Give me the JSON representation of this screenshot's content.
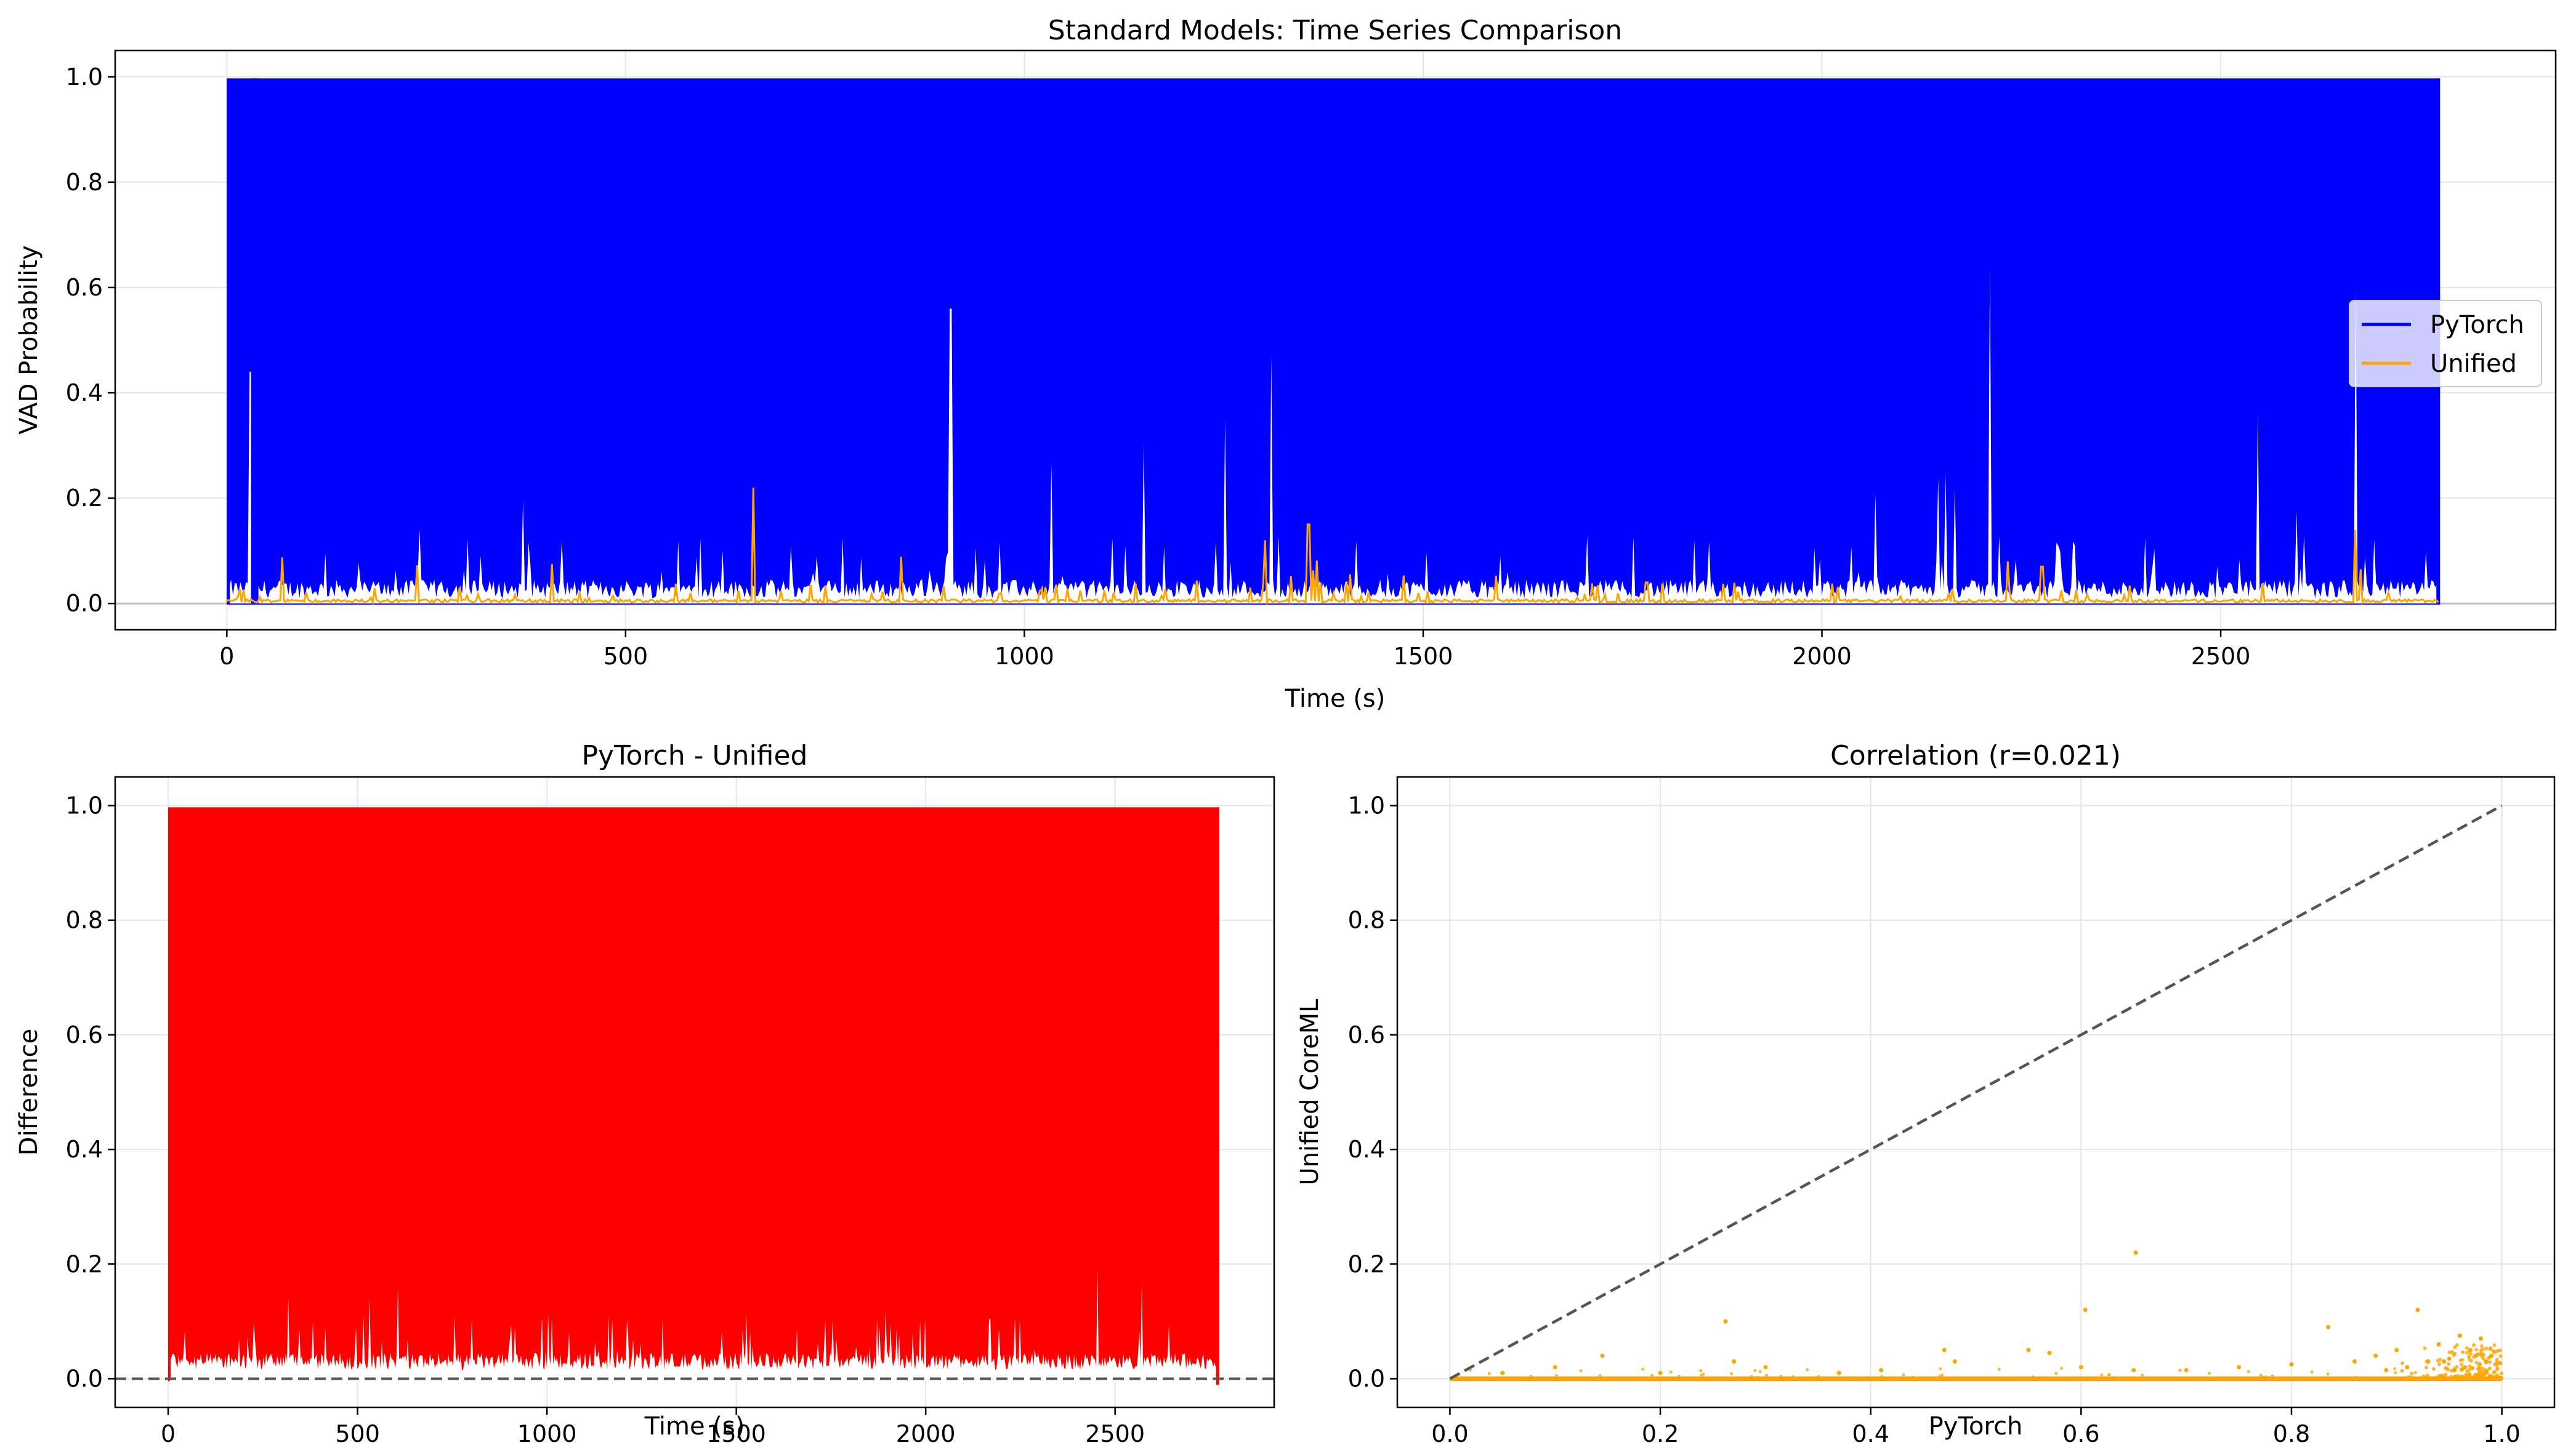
{
  "colors": {
    "pytorch": "#0000ff",
    "unified": "#ffa500",
    "difference": "#ff0000",
    "reference_line": "#555555",
    "grid": "#e6e6e6"
  },
  "chart_data": [
    {
      "type": "line",
      "title": "Standard Models: Time Series Comparison",
      "xlabel": "Time (s)",
      "ylabel": "VAD Probability",
      "xlim": [
        -140,
        2920
      ],
      "ylim": [
        -0.05,
        1.05
      ],
      "x_ticks": [
        0,
        500,
        1000,
        1500,
        2000,
        2500
      ],
      "y_ticks": [
        0.0,
        0.2,
        0.4,
        0.6,
        0.8,
        1.0
      ],
      "x_tick_labels": [
        "0",
        "500",
        "1000",
        "1500",
        "2000",
        "2500"
      ],
      "y_tick_labels": [
        "0.0",
        "0.2",
        "0.4",
        "0.6",
        "0.8",
        "1.0"
      ],
      "grid": true,
      "legend": "center-right",
      "duration_s": 2775,
      "series": [
        {
          "name": "PyTorch",
          "color": "#0000ff",
          "description_values": "dense oscillation between ~0.0 and 0.997 over entire duration",
          "max": 0.997,
          "min": 0.0
        },
        {
          "name": "Unified",
          "color": "#ffa500",
          "max": 0.22,
          "spikes": [
            [
              660,
              0.22
            ],
            [
              1302,
              0.12
            ],
            [
              1356,
              0.15
            ],
            [
              2233,
              0.08
            ],
            [
              2668,
              0.14
            ],
            [
              2276,
              0.07
            ],
            [
              1780,
              0.04
            ]
          ]
        }
      ],
      "pytorch_low_envelope_spikes": [
        [
          30,
          0.44
        ],
        [
          908,
          0.56
        ],
        [
          1310,
          0.47
        ],
        [
          2210,
          0.64
        ],
        [
          1252,
          0.35
        ],
        [
          2546,
          0.36
        ],
        [
          2670,
          0.6
        ]
      ]
    },
    {
      "type": "line",
      "title": "PyTorch - Unified",
      "xlabel": "Time (s)",
      "ylabel": "Difference",
      "xlim": [
        -140,
        2920
      ],
      "ylim": [
        -0.05,
        1.05
      ],
      "x_ticks": [
        0,
        500,
        1000,
        1500,
        2000,
        2500
      ],
      "y_ticks": [
        0.0,
        0.2,
        0.4,
        0.6,
        0.8,
        1.0
      ],
      "x_tick_labels": [
        "0",
        "500",
        "1000",
        "1500",
        "2000",
        "2500"
      ],
      "y_tick_labels": [
        "0.0",
        "0.2",
        "0.4",
        "0.6",
        "0.8",
        "1.0"
      ],
      "grid": true,
      "reference_y": 0.0,
      "series": [
        {
          "color": "#ff0000",
          "max": 0.997,
          "min": -0.02
        }
      ]
    },
    {
      "type": "scatter",
      "title": "Correlation (r=0.021)",
      "xlabel": "PyTorch",
      "ylabel": "Unified CoreML",
      "xlim": [
        -0.05,
        1.05
      ],
      "ylim": [
        -0.05,
        1.05
      ],
      "x_ticks": [
        0.0,
        0.2,
        0.4,
        0.6,
        0.8,
        1.0
      ],
      "y_ticks": [
        0.0,
        0.2,
        0.4,
        0.6,
        0.8,
        1.0
      ],
      "x_tick_labels": [
        "0.0",
        "0.2",
        "0.4",
        "0.6",
        "0.8",
        "1.0"
      ],
      "y_tick_labels": [
        "0.0",
        "0.2",
        "0.4",
        "0.6",
        "0.8",
        "1.0"
      ],
      "grid": true,
      "correlation_r": 0.021,
      "reference_line": [
        [
          0,
          0
        ],
        [
          1,
          1
        ]
      ],
      "points": [
        [
          0.652,
          0.22
        ],
        [
          0.92,
          0.12
        ],
        [
          0.604,
          0.12
        ],
        [
          0.262,
          0.1
        ],
        [
          0.835,
          0.09
        ],
        [
          0.96,
          0.075
        ],
        [
          0.98,
          0.07
        ],
        [
          0.145,
          0.04
        ],
        [
          0.47,
          0.05
        ],
        [
          0.55,
          0.05
        ],
        [
          0.57,
          0.045
        ],
        [
          0.9,
          0.05
        ],
        [
          0.88,
          0.04
        ],
        [
          0.94,
          0.06
        ],
        [
          0.97,
          0.05
        ],
        [
          0.99,
          0.04
        ],
        [
          0.95,
          0.035
        ],
        [
          0.93,
          0.03
        ],
        [
          0.86,
          0.03
        ],
        [
          0.8,
          0.025
        ],
        [
          0.75,
          0.02
        ],
        [
          0.7,
          0.015
        ],
        [
          0.65,
          0.015
        ],
        [
          0.6,
          0.02
        ],
        [
          0.48,
          0.03
        ],
        [
          0.41,
          0.015
        ],
        [
          0.37,
          0.01
        ],
        [
          0.3,
          0.02
        ],
        [
          0.27,
          0.03
        ],
        [
          0.2,
          0.01
        ],
        [
          0.1,
          0.02
        ],
        [
          0.05,
          0.01
        ],
        [
          0.985,
          0.03
        ],
        [
          0.995,
          0.025
        ],
        [
          0.975,
          0.04
        ],
        [
          0.965,
          0.02
        ],
        [
          0.955,
          0.015
        ],
        [
          0.945,
          0.03
        ],
        [
          0.91,
          0.02
        ],
        [
          0.89,
          0.015
        ]
      ]
    }
  ]
}
